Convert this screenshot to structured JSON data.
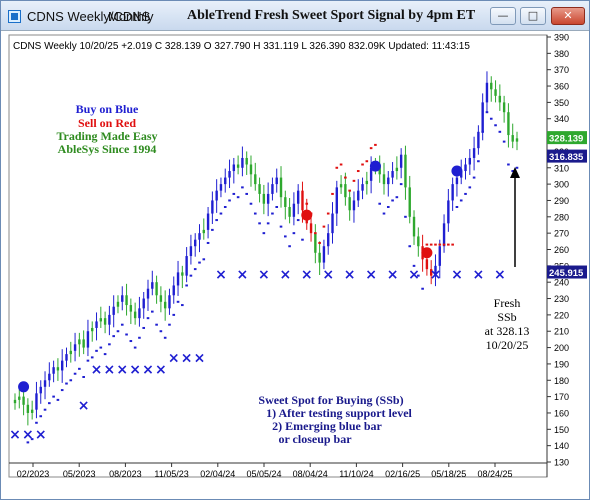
{
  "window": {
    "tab_weekly": "CDNS Weekly/CDNS",
    "tab_monthly": "Monthly",
    "title": "AbleTrend Fresh Sweet Sport Signal by 4pm ET",
    "minimize_label": "—",
    "maximize_label": "□",
    "close_label": "✕"
  },
  "header": {
    "info": "CDNS  Weekly 10/20/25 +2.019 C 328.139 O 327.790 H 331.119 L 326.390 832.09K Updated: 11:43:15"
  },
  "legend": {
    "buy": "Buy on Blue",
    "sell": "Sell on Red",
    "easy": "Trading Made Easy",
    "since": "AbleSys Since 1994",
    "buy_color": "#1f1fd1",
    "sell_color": "#e01010",
    "green_color": "#2e8b1f"
  },
  "annotation_fresh": {
    "line1": "Fresh",
    "line2": "SSb",
    "line3": "at 328.13",
    "line4": "10/20/25"
  },
  "annotation_sweet": {
    "line1": "Sweet Spot for Buying (SSb)",
    "line2": "1) After testing support level",
    "line3": "2) Emerging blue bar",
    "line4": "or closeup bar"
  },
  "price_tags": {
    "last": "328.139",
    "stop": "316.835",
    "support": "245.915"
  },
  "chart_data": {
    "type": "candlestick",
    "symbol": "CDNS",
    "timeframe": "Weekly",
    "x_tick_labels": [
      "02/2023",
      "05/2023",
      "08/2023",
      "11/05/23",
      "02/04/24",
      "05/05/24",
      "08/04/24",
      "11/10/24",
      "02/16/25",
      "05/18/25",
      "08/24/25"
    ],
    "y_ticks": [
      130,
      140,
      150,
      160,
      170,
      180,
      190,
      200,
      210,
      220,
      230,
      240,
      250,
      260,
      270,
      280,
      290,
      300,
      310,
      320,
      330,
      340,
      350,
      360,
      370,
      380,
      390
    ],
    "ylim": [
      130,
      390
    ],
    "grid": false,
    "closes": [
      168,
      170,
      165,
      160,
      162,
      172,
      176,
      180,
      184,
      188,
      186,
      192,
      196,
      198,
      202,
      205,
      200,
      210,
      212,
      216,
      218,
      214,
      220,
      225,
      228,
      232,
      226,
      222,
      218,
      224,
      230,
      236,
      240,
      232,
      228,
      224,
      232,
      238,
      246,
      244,
      256,
      262,
      266,
      270,
      272,
      282,
      290,
      296,
      300,
      304,
      308,
      312,
      310,
      316,
      312,
      306,
      300,
      294,
      288,
      294,
      300,
      304,
      292,
      286,
      280,
      288,
      296,
      284,
      276,
      270,
      258,
      252,
      262,
      270,
      282,
      298,
      300,
      292,
      284,
      290,
      296,
      300,
      302,
      310,
      312,
      306,
      300,
      304,
      308,
      310,
      318,
      298,
      280,
      268,
      262,
      254,
      248,
      244,
      250,
      262,
      276,
      290,
      300,
      304,
      308,
      312,
      316,
      322,
      332,
      350,
      362,
      358,
      354,
      350,
      344,
      330,
      326,
      328
    ],
    "signal_bars_color": {
      "up": "#1f1fd1",
      "down": "#e01010",
      "neutral": "#2ea82e"
    },
    "signal_dots": [
      {
        "kind": "buy",
        "bar": 2,
        "price": 176
      },
      {
        "kind": "sell",
        "bar": 68,
        "price": 281
      },
      {
        "kind": "buy",
        "bar": 84,
        "price": 311
      },
      {
        "kind": "sell",
        "bar": 96,
        "price": 258
      },
      {
        "kind": "buy",
        "bar": 103,
        "price": 308
      }
    ],
    "x_markers": [
      {
        "price": 147,
        "from_bar": 0,
        "to_bar": 8
      },
      {
        "price": 165,
        "from_bar": 16,
        "to_bar": 16
      },
      {
        "price": 187,
        "from_bar": 19,
        "to_bar": 34
      },
      {
        "price": 194,
        "from_bar": 37,
        "to_bar": 45
      },
      {
        "price": 245,
        "from_bar": 48,
        "to_bar": 117
      }
    ],
    "annotations": [
      "Fresh SSb at 328.13 10/20/25"
    ]
  }
}
